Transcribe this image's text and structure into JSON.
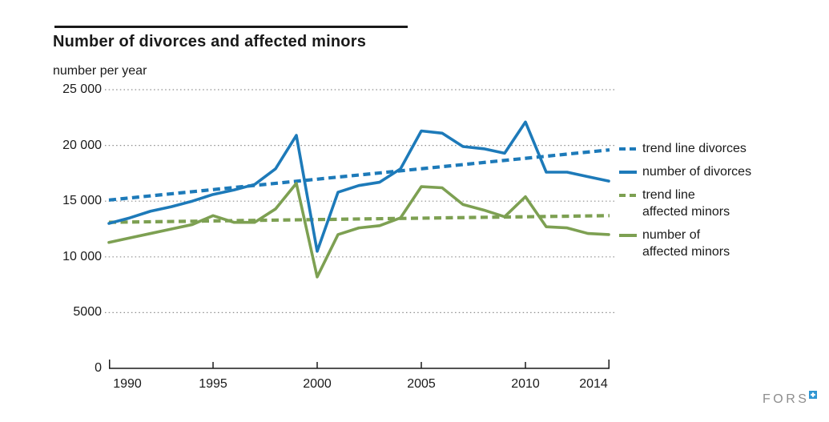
{
  "header": {
    "title": "Number of divorces and affected minors",
    "unit_label": "number per year"
  },
  "colors": {
    "divorces_blue": "#1d7ab9",
    "minors_green": "#7da052",
    "grid_gray": "#8e8e8e",
    "axis_black": "#1a1a1a",
    "logo_gray": "#8d8d8d",
    "logo_blue": "#2f96d2"
  },
  "chart_data": {
    "type": "line",
    "title": "Number of divorces and affected minors",
    "ylabel": "number per year",
    "xlabel": "",
    "grid": "horizontal dotted",
    "legend_position": "right",
    "ylim": [
      0,
      25000
    ],
    "xlim": [
      1990,
      2014
    ],
    "yticks": [
      "25 000",
      "20 000",
      "15 000",
      "10 000",
      "5000",
      "0"
    ],
    "ytick_values": [
      25000,
      20000,
      15000,
      10000,
      5000,
      0
    ],
    "xticks": [
      1990,
      1995,
      2000,
      2005,
      2010,
      2014
    ],
    "xtick_labels": [
      "1990",
      "1995",
      "2000",
      "2005",
      "2010",
      "2014"
    ],
    "x": [
      1990,
      1991,
      1992,
      1993,
      1994,
      1995,
      1996,
      1997,
      1998,
      1999,
      2000,
      2001,
      2002,
      2003,
      2004,
      2005,
      2006,
      2007,
      2008,
      2009,
      2010,
      2011,
      2012,
      2013,
      2014
    ],
    "series": [
      {
        "name": "trend line divorces",
        "style": "dashed",
        "color_key": "divorces_blue",
        "trend": {
          "x": [
            1990,
            2014
          ],
          "y": [
            15100,
            19600
          ]
        }
      },
      {
        "name": "number of divorces",
        "style": "solid",
        "color_key": "divorces_blue",
        "values": [
          13000,
          13500,
          14100,
          14500,
          15000,
          15600,
          16000,
          16500,
          17900,
          20900,
          10500,
          15800,
          16400,
          16700,
          17900,
          21300,
          21100,
          19900,
          19700,
          19300,
          22100,
          17600,
          17600,
          17200,
          16800
        ]
      },
      {
        "name": "trend line affected minors",
        "style": "dashed",
        "color_key": "minors_green",
        "trend": {
          "x": [
            1990,
            2014
          ],
          "y": [
            13100,
            13700
          ]
        }
      },
      {
        "name": "number of affected minors",
        "style": "solid",
        "color_key": "minors_green",
        "values": [
          11300,
          11700,
          12100,
          12500,
          12900,
          13700,
          13100,
          13100,
          14300,
          16600,
          8200,
          12000,
          12600,
          12800,
          13500,
          16300,
          16200,
          14700,
          14200,
          13600,
          15400,
          12700,
          12600,
          12100,
          12000
        ]
      }
    ]
  },
  "legend": {
    "items": [
      {
        "swatch": "dashed",
        "color_key": "divorces_blue",
        "lines": [
          "trend line divorces"
        ]
      },
      {
        "swatch": "solid",
        "color_key": "divorces_blue",
        "lines": [
          "number of divorces"
        ]
      },
      {
        "swatch": "dashed",
        "color_key": "minors_green",
        "lines": [
          "trend line",
          "affected minors"
        ]
      },
      {
        "swatch": "solid",
        "color_key": "minors_green",
        "lines": [
          "number of",
          "affected minors"
        ]
      }
    ]
  },
  "footer": {
    "logo_text": "FORS"
  }
}
